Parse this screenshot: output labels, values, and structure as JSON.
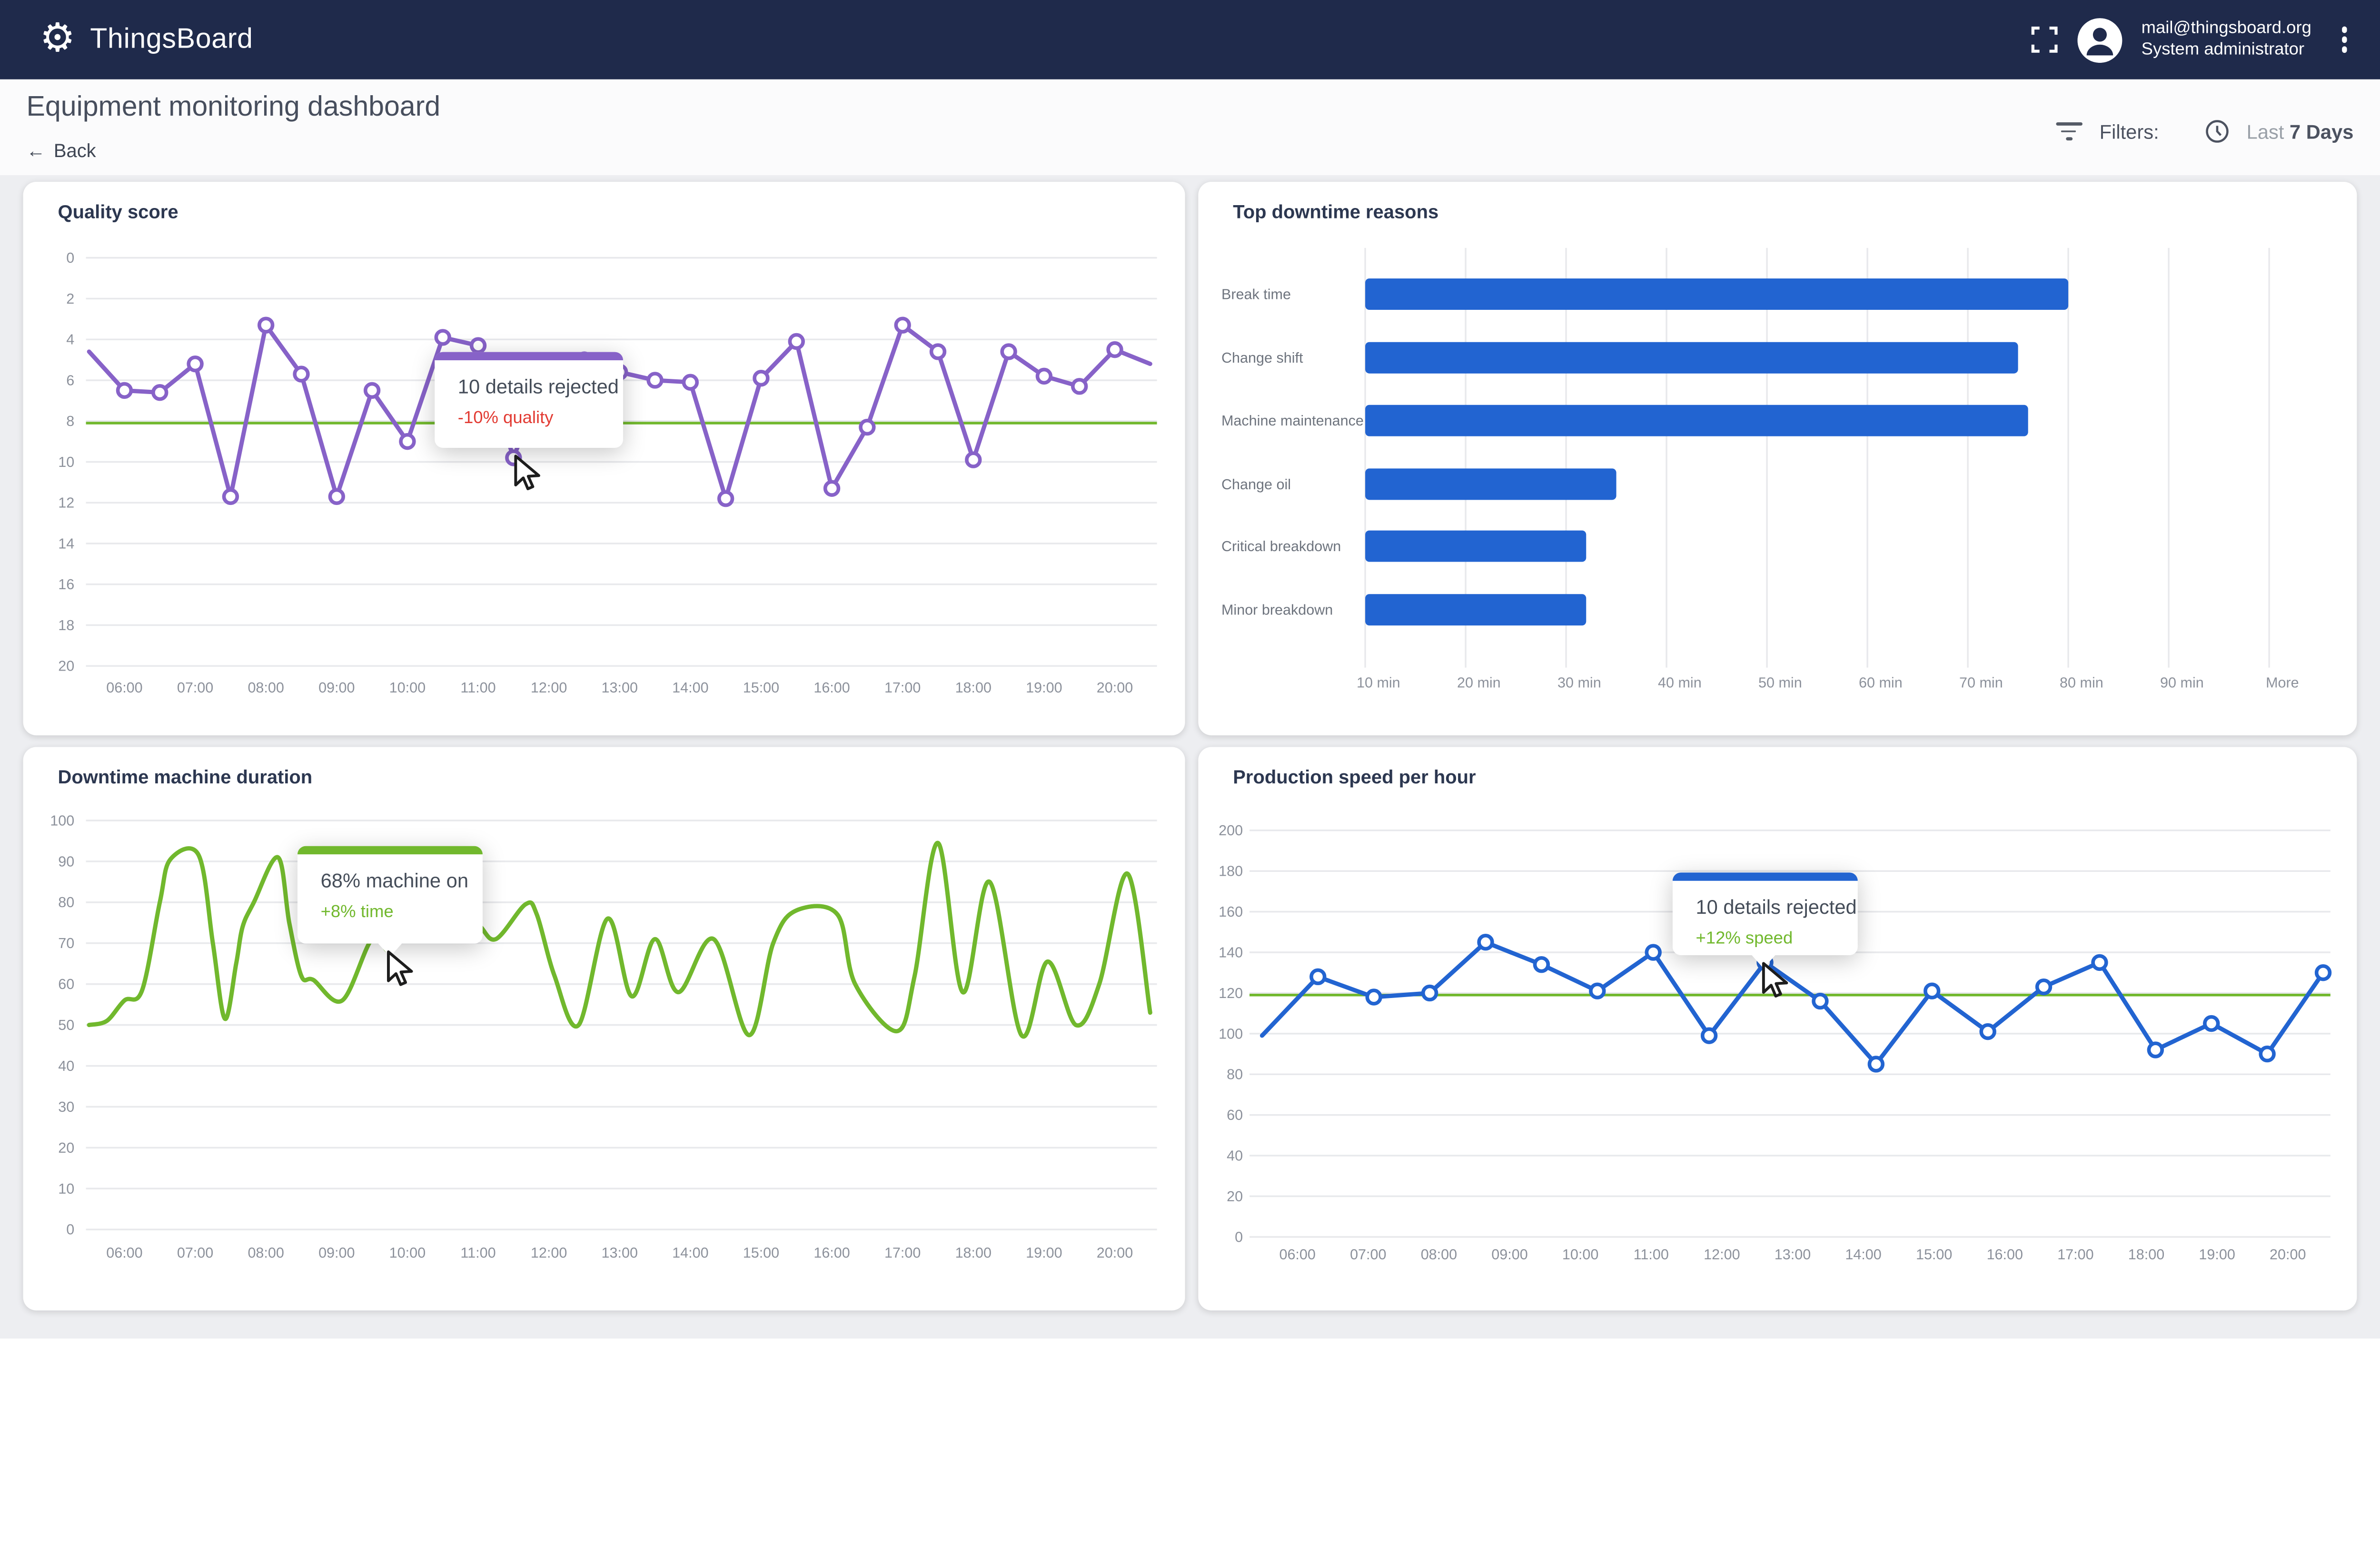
{
  "header": {
    "app_name": "ThingsBoard",
    "user_email": "mail@thingsboard.org",
    "user_role": "System administrator"
  },
  "toolbar": {
    "title": "Equipment monitoring dashboard",
    "back_label": "Back",
    "filters_label": "Filters:",
    "time_range_prefix": "Last",
    "time_range_value": "7 Days"
  },
  "colors": {
    "header_bg": "#1f2a4b",
    "purple": "#8762c8",
    "green": "#71b82d",
    "blue": "#2264d1",
    "red": "#e23b33",
    "grid": "#e8e9ec",
    "tick_text": "#8c919b",
    "category_text": "#6e747e"
  },
  "chart_data": [
    {
      "id": "quality-score",
      "type": "line",
      "title": "Quality score",
      "series_color": "purple",
      "smooth": false,
      "markers": true,
      "skip_first_marker": true,
      "skip_last_marker": true,
      "y_inverted": true,
      "ylim": [
        0,
        20
      ],
      "y_ticks": [
        0,
        2,
        4,
        6,
        8,
        10,
        12,
        14,
        16,
        18,
        20
      ],
      "x_ticks": [
        "06:00",
        "07:00",
        "08:00",
        "09:00",
        "10:00",
        "11:00",
        "12:00",
        "13:00",
        "14:00",
        "15:00",
        "16:00",
        "17:00",
        "18:00",
        "19:00",
        "20:00"
      ],
      "threshold": 8.1,
      "threshold_color": "green",
      "points": [
        [
          5.5,
          4.6
        ],
        [
          6,
          6.5
        ],
        [
          6.5,
          6.6
        ],
        [
          7,
          5.2
        ],
        [
          7.5,
          11.7
        ],
        [
          8,
          3.3
        ],
        [
          8.5,
          5.7
        ],
        [
          9,
          11.7
        ],
        [
          9.5,
          6.5
        ],
        [
          10,
          9
        ],
        [
          10.5,
          3.9
        ],
        [
          11,
          4.3
        ],
        [
          11.5,
          9.8
        ],
        [
          12,
          5.2
        ],
        [
          12.5,
          5
        ],
        [
          13,
          5.6
        ],
        [
          13.5,
          6
        ],
        [
          14,
          6.1
        ],
        [
          14.5,
          11.8
        ],
        [
          15,
          5.9
        ],
        [
          15.5,
          4.1
        ],
        [
          16,
          11.3
        ],
        [
          16.5,
          8.3
        ],
        [
          17,
          3.3
        ],
        [
          17.5,
          4.6
        ],
        [
          18,
          9.9
        ],
        [
          18.5,
          4.6
        ],
        [
          19,
          5.8
        ],
        [
          19.5,
          6.3
        ],
        [
          20,
          4.5
        ],
        [
          20.5,
          5.2
        ]
      ],
      "tooltip": {
        "title": "10 details rejected",
        "subtitle": "-10% quality",
        "subtitle_color": "red",
        "hover_point": [
          11.5,
          9.8
        ]
      }
    },
    {
      "id": "top-downtime-reasons",
      "type": "bar",
      "title": "Top downtime reasons",
      "bar_color": "blue",
      "categories": [
        "Break time",
        "Change shift",
        "Machine maintenance",
        "Change oil",
        "Critical breakdown",
        "Minor breakdown"
      ],
      "values_min": [
        80,
        75,
        76,
        35,
        32,
        32
      ],
      "axis_start_min": 10,
      "x_tick_labels": [
        "10 min",
        "20 min",
        "30 min",
        "40 min",
        "50 min",
        "60 min",
        "70 min",
        "80 min",
        "90 min",
        "More"
      ]
    },
    {
      "id": "downtime-machine-duration",
      "type": "line",
      "title": "Downtime machine duration",
      "series_color": "green",
      "smooth": true,
      "markers": false,
      "y_inverted": false,
      "ylim": [
        0,
        100
      ],
      "y_ticks": [
        100,
        90,
        80,
        70,
        60,
        50,
        40,
        30,
        20,
        10,
        0
      ],
      "x_ticks": [
        "06:00",
        "07:00",
        "08:00",
        "09:00",
        "10:00",
        "11:00",
        "12:00",
        "13:00",
        "14:00",
        "15:00",
        "16:00",
        "17:00",
        "18:00",
        "19:00",
        "20:00"
      ],
      "points": [
        [
          5.5,
          50
        ],
        [
          5.75,
          51
        ],
        [
          6,
          56
        ],
        [
          6.25,
          58.5
        ],
        [
          6.5,
          80
        ],
        [
          6.65,
          90.5
        ],
        [
          7.05,
          91.5
        ],
        [
          7.25,
          70
        ],
        [
          7.42,
          51.5
        ],
        [
          7.58,
          65
        ],
        [
          7.67,
          74
        ],
        [
          7.83,
          80
        ],
        [
          8.17,
          91
        ],
        [
          8.33,
          75
        ],
        [
          8.5,
          62
        ],
        [
          8.67,
          61
        ],
        [
          9.08,
          56
        ],
        [
          9.5,
          71
        ],
        [
          9.75,
          68
        ],
        [
          10,
          73
        ],
        [
          10.33,
          78
        ],
        [
          10.67,
          77
        ],
        [
          11,
          74.5
        ],
        [
          11.25,
          71
        ],
        [
          11.67,
          79.5
        ],
        [
          11.83,
          77
        ],
        [
          12.08,
          62
        ],
        [
          12.42,
          50
        ],
        [
          12.83,
          76
        ],
        [
          13.17,
          57
        ],
        [
          13.5,
          71
        ],
        [
          13.83,
          58
        ],
        [
          14.33,
          71
        ],
        [
          14.83,
          47.5
        ],
        [
          15.17,
          70
        ],
        [
          15.5,
          78
        ],
        [
          16.08,
          77
        ],
        [
          16.33,
          60
        ],
        [
          16.92,
          48.5
        ],
        [
          17.17,
          62
        ],
        [
          17.5,
          94.5
        ],
        [
          17.85,
          58
        ],
        [
          18.23,
          85
        ],
        [
          18.68,
          47.5
        ],
        [
          19.05,
          65.5
        ],
        [
          19.45,
          50
        ],
        [
          19.78,
          60
        ],
        [
          20.18,
          87
        ],
        [
          20.5,
          53
        ]
      ],
      "tooltip": {
        "title": "68% machine on",
        "subtitle": "+8% time",
        "subtitle_color": "green",
        "hover_point": [
          9.75,
          68
        ]
      }
    },
    {
      "id": "production-speed-per-hour",
      "type": "line",
      "title": "Production speed per hour",
      "series_color": "blue",
      "smooth": false,
      "markers": true,
      "skip_first_marker": true,
      "skip_last_marker": false,
      "y_inverted": false,
      "ylim": [
        0,
        200
      ],
      "y_ticks": [
        200,
        180,
        160,
        140,
        120,
        100,
        80,
        60,
        40,
        20,
        0
      ],
      "x_ticks": [
        "06:00",
        "07:00",
        "08:00",
        "09:00",
        "10:00",
        "11:00",
        "12:00",
        "13:00",
        "14:00",
        "15:00",
        "16:00",
        "17:00",
        "18:00",
        "19:00",
        "20:00"
      ],
      "threshold": 119,
      "threshold_color": "green",
      "points": [
        [
          5.5,
          99
        ],
        [
          6.29,
          128
        ],
        [
          7.08,
          118
        ],
        [
          7.87,
          120
        ],
        [
          8.66,
          145
        ],
        [
          9.45,
          134
        ],
        [
          10.24,
          121
        ],
        [
          11.03,
          140
        ],
        [
          11.82,
          99
        ],
        [
          12.61,
          135
        ],
        [
          13.39,
          116
        ],
        [
          14.18,
          85
        ],
        [
          14.97,
          121
        ],
        [
          15.76,
          101
        ],
        [
          16.55,
          123
        ],
        [
          17.34,
          135
        ],
        [
          18.13,
          92
        ],
        [
          18.92,
          105
        ],
        [
          19.71,
          90
        ],
        [
          20.5,
          130
        ]
      ],
      "tooltip": {
        "title": "10 details rejected",
        "subtitle": "+12% speed",
        "subtitle_color": "green",
        "hover_point": [
          12.61,
          135
        ]
      }
    }
  ]
}
